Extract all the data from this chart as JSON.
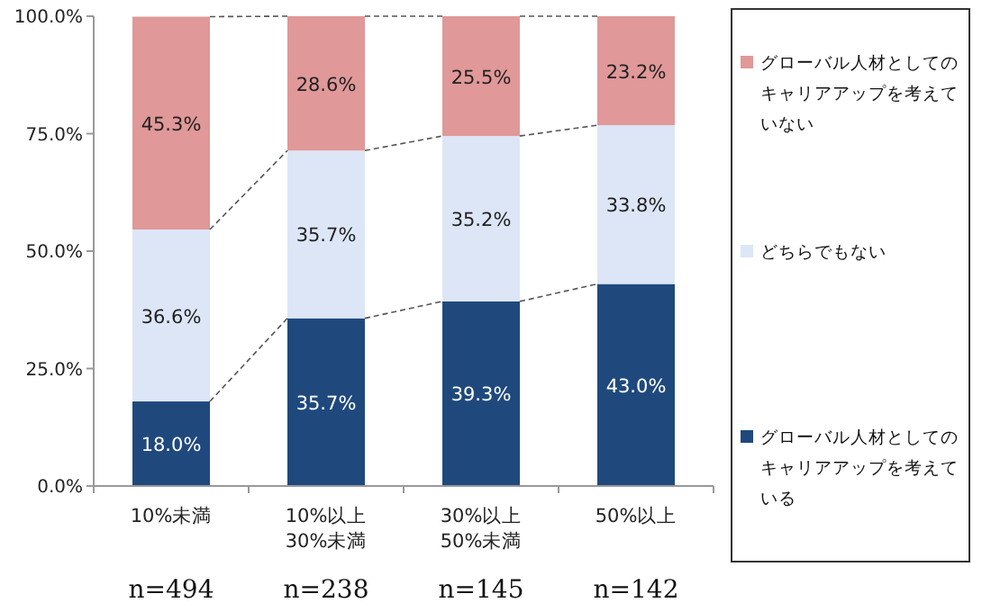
{
  "chart_data": {
    "type": "bar",
    "stacked": true,
    "categories": [
      "10%未満",
      "10%以上\n30%未満",
      "30%以上\n50%未満",
      "50%以上"
    ],
    "series": [
      {
        "name": "グローバル人材としてのキャリアアップを考えている",
        "color": "#1f497d",
        "values": [
          18.0,
          35.7,
          39.3,
          43.0
        ],
        "value_labels": [
          "18.0%",
          "35.7%",
          "39.3%",
          "43.0%"
        ]
      },
      {
        "name": "どちらでもない",
        "color": "#dce6f7",
        "values": [
          36.6,
          35.7,
          35.2,
          33.8
        ],
        "value_labels": [
          "36.6%",
          "35.7%",
          "35.2%",
          "33.8%"
        ]
      },
      {
        "name": "グローバル人材としてのキャリアアップを考えていない",
        "color": "#e09898",
        "values": [
          45.3,
          28.6,
          25.5,
          23.2
        ],
        "value_labels": [
          "45.3%",
          "28.6%",
          "25.5%",
          "23.2%"
        ]
      }
    ],
    "ylim": [
      0,
      100
    ],
    "yticks": [
      {
        "value": 0,
        "label": "0.0%"
      },
      {
        "value": 25,
        "label": "25.0%"
      },
      {
        "value": 50,
        "label": "50.0%"
      },
      {
        "value": 75,
        "label": "75.0%"
      },
      {
        "value": 100,
        "label": "100.0%"
      }
    ],
    "legend": "right",
    "annotations": [
      "n=494",
      "n=238",
      "n=145",
      "n=142"
    ]
  }
}
